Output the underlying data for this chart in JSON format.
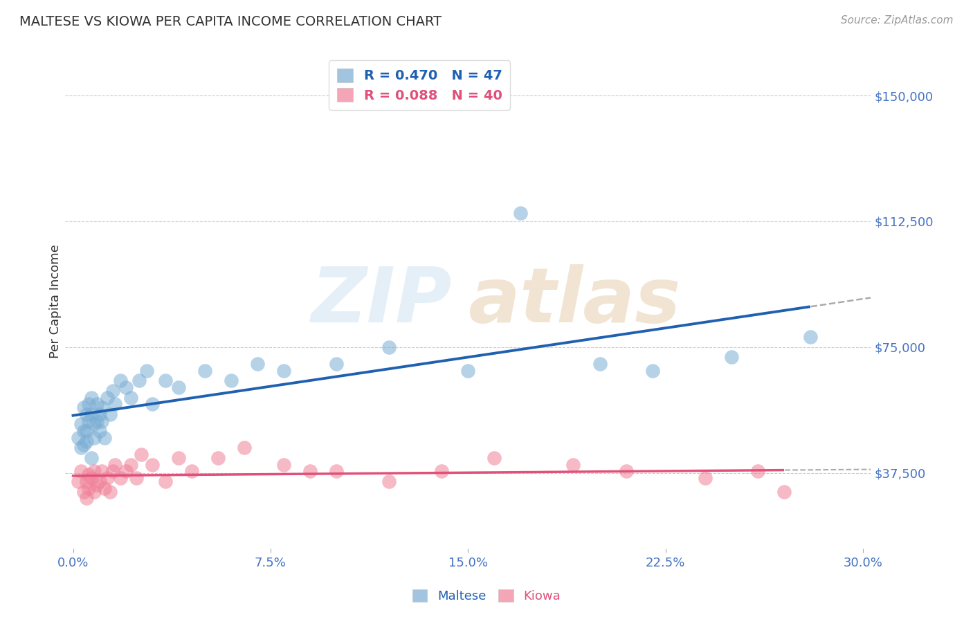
{
  "title": "MALTESE VS KIOWA PER CAPITA INCOME CORRELATION CHART",
  "source": "Source: ZipAtlas.com",
  "ylabel": "Per Capita Income",
  "xlim": [
    -0.003,
    0.303
  ],
  "ylim": [
    15000,
    162500
  ],
  "ytick_vals": [
    37500,
    75000,
    112500,
    150000
  ],
  "ytick_labels": [
    "$37,500",
    "$75,000",
    "$112,500",
    "$150,000"
  ],
  "xtick_vals": [
    0.0,
    0.075,
    0.15,
    0.225,
    0.3
  ],
  "xtick_labels": [
    "0.0%",
    "7.5%",
    "15.0%",
    "22.5%",
    "30.0%"
  ],
  "maltese_color": "#7aadd4",
  "kiowa_color": "#f08098",
  "maltese_line_color": "#2060b0",
  "kiowa_line_color": "#e0507a",
  "dashed_color": "#aaaaaa",
  "maltese_R": 0.47,
  "maltese_N": 47,
  "kiowa_R": 0.088,
  "kiowa_N": 40,
  "grid_color": "#cccccc",
  "background_color": "#ffffff",
  "tick_label_color": "#4472c4",
  "maltese_x": [
    0.002,
    0.003,
    0.003,
    0.004,
    0.004,
    0.004,
    0.005,
    0.005,
    0.005,
    0.006,
    0.006,
    0.007,
    0.007,
    0.007,
    0.008,
    0.008,
    0.009,
    0.009,
    0.01,
    0.01,
    0.011,
    0.011,
    0.012,
    0.013,
    0.014,
    0.015,
    0.016,
    0.018,
    0.02,
    0.022,
    0.025,
    0.028,
    0.03,
    0.035,
    0.04,
    0.05,
    0.06,
    0.07,
    0.08,
    0.1,
    0.12,
    0.15,
    0.17,
    0.2,
    0.22,
    0.25,
    0.28
  ],
  "maltese_y": [
    48000,
    52000,
    45000,
    57000,
    50000,
    46000,
    55000,
    50000,
    47000,
    53000,
    58000,
    55000,
    42000,
    60000,
    52000,
    48000,
    53000,
    58000,
    55000,
    50000,
    57000,
    53000,
    48000,
    60000,
    55000,
    62000,
    58000,
    65000,
    63000,
    60000,
    65000,
    68000,
    58000,
    65000,
    63000,
    68000,
    65000,
    70000,
    68000,
    70000,
    75000,
    68000,
    115000,
    70000,
    68000,
    72000,
    78000
  ],
  "kiowa_x": [
    0.002,
    0.003,
    0.004,
    0.005,
    0.005,
    0.006,
    0.006,
    0.007,
    0.008,
    0.008,
    0.009,
    0.01,
    0.011,
    0.012,
    0.013,
    0.014,
    0.015,
    0.016,
    0.018,
    0.02,
    0.022,
    0.024,
    0.026,
    0.03,
    0.035,
    0.04,
    0.045,
    0.055,
    0.065,
    0.08,
    0.09,
    0.1,
    0.12,
    0.14,
    0.16,
    0.19,
    0.21,
    0.24,
    0.26,
    0.27
  ],
  "kiowa_y": [
    35000,
    38000,
    32000,
    35000,
    30000,
    37000,
    33000,
    36000,
    32000,
    38000,
    34000,
    35000,
    38000,
    33000,
    36000,
    32000,
    38000,
    40000,
    36000,
    38000,
    40000,
    36000,
    43000,
    40000,
    35000,
    42000,
    38000,
    42000,
    45000,
    40000,
    38000,
    38000,
    35000,
    38000,
    42000,
    40000,
    38000,
    36000,
    38000,
    32000
  ]
}
